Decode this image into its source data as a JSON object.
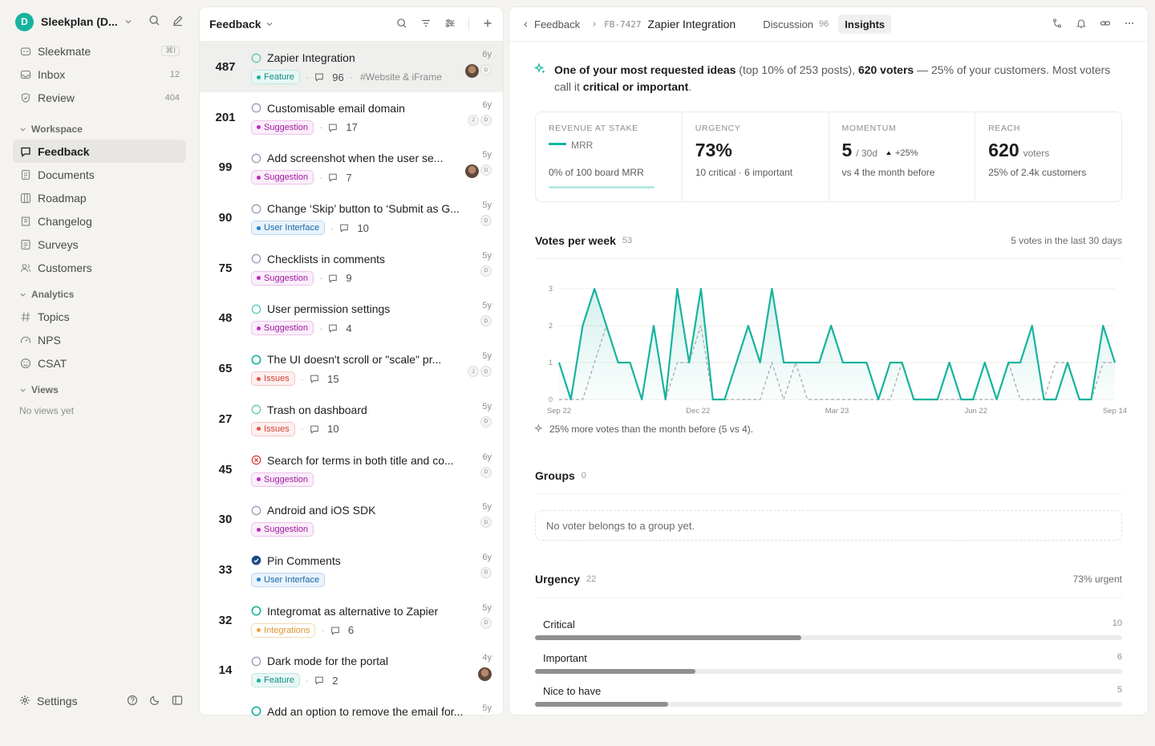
{
  "workspace": {
    "initial": "D",
    "name": "Sleekplan (D..."
  },
  "nav_top": [
    {
      "label": "Sleekmate",
      "shortcut": "⌘I",
      "icon": "sparkle-icon"
    },
    {
      "label": "Inbox",
      "count": "12",
      "icon": "inbox-icon"
    },
    {
      "label": "Review",
      "count": "404",
      "icon": "shield-icon"
    }
  ],
  "sections": {
    "workspace": "Workspace",
    "analytics": "Analytics",
    "views": "Views",
    "no_views": "No views yet"
  },
  "nav_workspace": [
    {
      "label": "Feedback",
      "icon": "chat-icon",
      "active": true
    },
    {
      "label": "Documents",
      "icon": "document-icon"
    },
    {
      "label": "Roadmap",
      "icon": "roadmap-icon"
    },
    {
      "label": "Changelog",
      "icon": "changelog-icon"
    },
    {
      "label": "Surveys",
      "icon": "survey-icon"
    },
    {
      "label": "Customers",
      "icon": "users-icon"
    }
  ],
  "nav_analytics": [
    {
      "label": "Topics",
      "icon": "hash-icon"
    },
    {
      "label": "NPS",
      "icon": "gauge-icon"
    },
    {
      "label": "CSAT",
      "icon": "smiley-icon"
    }
  ],
  "footer": {
    "settings": "Settings"
  },
  "list": {
    "title": "Feedback",
    "items": [
      {
        "votes": "487",
        "title": "Zapier Integration",
        "status": "open",
        "tag": "Feature",
        "tag_type": "feature",
        "comments": "96",
        "hashtag": "#Website & iFrame",
        "age": "6y",
        "avatars": [
          "photo",
          "D"
        ],
        "selected": true
      },
      {
        "votes": "201",
        "title": "Customisable email domain",
        "status": "planned",
        "tag": "Suggestion",
        "tag_type": "suggestion",
        "comments": "17",
        "age": "6y",
        "avatars": [
          "J",
          "D"
        ]
      },
      {
        "votes": "99",
        "title": "Add screenshot when the user se...",
        "status": "planned",
        "tag": "Suggestion",
        "tag_type": "suggestion",
        "comments": "7",
        "age": "5y",
        "avatars": [
          "photo",
          "D"
        ]
      },
      {
        "votes": "90",
        "title": "Change ‘Skip’ button to ‘Submit as G...",
        "status": "planned",
        "tag": "User Interface",
        "tag_type": "ui",
        "comments": "10",
        "age": "5y",
        "avatars": [
          "D"
        ]
      },
      {
        "votes": "75",
        "title": "Checklists in comments",
        "status": "planned",
        "tag": "Suggestion",
        "tag_type": "suggestion",
        "comments": "9",
        "age": "5y",
        "avatars": [
          "D"
        ]
      },
      {
        "votes": "48",
        "title": "User permission settings",
        "status": "open",
        "tag": "Suggestion",
        "tag_type": "suggestion",
        "comments": "4",
        "age": "5y",
        "avatars": [
          "D"
        ]
      },
      {
        "votes": "65",
        "title": "The UI doesn't scroll or \"scale\" pr...",
        "status": "progress",
        "tag": "Issues",
        "tag_type": "issues",
        "comments": "15",
        "age": "5y",
        "avatars": [
          "J",
          "D"
        ]
      },
      {
        "votes": "27",
        "title": "Trash on dashboard",
        "status": "open",
        "tag": "Issues",
        "tag_type": "issues",
        "comments": "10",
        "age": "5y",
        "avatars": [
          "D"
        ]
      },
      {
        "votes": "45",
        "title": "Search for terms in both title and co...",
        "status": "rejected",
        "tag": "Suggestion",
        "tag_type": "suggestion",
        "comments": "",
        "age": "6y",
        "avatars": [
          "D"
        ]
      },
      {
        "votes": "30",
        "title": "Android and iOS SDK",
        "status": "planned",
        "tag": "Suggestion",
        "tag_type": "suggestion",
        "comments": "",
        "age": "5y",
        "avatars": [
          "D"
        ]
      },
      {
        "votes": "33",
        "title": "Pin Comments",
        "status": "done",
        "tag": "User Interface",
        "tag_type": "ui",
        "comments": "",
        "age": "6y",
        "avatars": [
          "D"
        ]
      },
      {
        "votes": "32",
        "title": "Integromat as alternative to Zapier",
        "status": "progress",
        "tag": "Integrations",
        "tag_type": "integrations",
        "comments": "6",
        "age": "5y",
        "avatars": [
          "D"
        ]
      },
      {
        "votes": "14",
        "title": "Dark mode for the portal",
        "status": "planned",
        "tag": "Feature",
        "tag_type": "feature",
        "comments": "2",
        "age": "4y",
        "avatars": [
          "photo"
        ]
      },
      {
        "votes": "",
        "title": "Add an option to remove the email for...",
        "status": "progress",
        "tag": "",
        "tag_type": "",
        "comments": "",
        "age": "5y",
        "avatars": []
      }
    ]
  },
  "detail": {
    "breadcrumb_root": "Feedback",
    "post_id": "FB-7427",
    "title": "Zapier Integration",
    "tabs": [
      {
        "label": "Discussion",
        "count": "96",
        "active": false
      },
      {
        "label": "Insights",
        "count": "",
        "active": true
      }
    ],
    "insight": {
      "lead": "One of your most requested ideas",
      "rank": "(top 10% of 253 posts),",
      "voters": "620 voters",
      "middle": "— 25% of your customers. Most voters call it",
      "emphasis": "critical or important",
      "end": "."
    },
    "stats": {
      "revenue": {
        "label": "REVENUE AT STAKE",
        "value_label": "MRR",
        "sub": "0% of 100 board MRR",
        "fraction": 0
      },
      "urgency": {
        "label": "URGENCY",
        "value": "73%",
        "sub": "10 critical · 6 important"
      },
      "momentum": {
        "label": "MOMENTUM",
        "value": "5",
        "unit": "/ 30d",
        "trend": "+25%",
        "sub": "vs 4 the month before"
      },
      "reach": {
        "label": "REACH",
        "value": "620",
        "unit": "voters",
        "sub": "25% of 2.4k customers"
      }
    },
    "votes_section": {
      "title": "Votes per week",
      "count": "53",
      "right": "5 votes in the last 30 days",
      "note": "25% more votes than the month before (5 vs 4)."
    },
    "groups_section": {
      "title": "Groups",
      "count": "0",
      "empty": "No voter belongs to a group yet."
    },
    "urgency_section": {
      "title": "Urgency",
      "count": "22",
      "right": "73% urgent",
      "rows": [
        {
          "label": "Critical",
          "count": 10,
          "fraction": 0.454
        },
        {
          "label": "Important",
          "count": 6,
          "fraction": 0.273
        },
        {
          "label": "Nice to have",
          "count": 5,
          "fraction": 0.227
        }
      ]
    }
  },
  "colors": {
    "accent": "#17b39e",
    "previous": "#a6a6a6"
  },
  "chart_data": {
    "type": "line",
    "x_tick_labels": [
      "Sep 22",
      "Dec 22",
      "Mar 23",
      "Jun 22",
      "Sep 14"
    ],
    "ylim": [
      0,
      3
    ],
    "y_ticks": [
      0,
      1,
      2,
      3
    ],
    "grid": true,
    "series": [
      {
        "values": [
          1,
          0,
          2,
          3,
          2,
          1,
          1,
          0,
          2,
          0,
          3,
          1,
          3,
          0,
          0,
          1,
          2,
          1,
          3,
          1,
          1,
          1,
          1,
          2,
          1,
          1,
          1,
          0,
          1,
          1,
          0,
          0,
          0,
          1,
          0,
          0,
          1,
          0,
          1,
          1,
          2,
          0,
          0,
          1,
          0,
          0,
          2,
          1
        ]
      },
      {
        "values": [
          0,
          0,
          0,
          1,
          2,
          1,
          1,
          0,
          2,
          0,
          1,
          1,
          2,
          0,
          0,
          0,
          0,
          0,
          1,
          0,
          1,
          0,
          0,
          0,
          0,
          0,
          0,
          0,
          0,
          1,
          0,
          0,
          0,
          0,
          0,
          0,
          0,
          0,
          1,
          0,
          0,
          0,
          1,
          1,
          0,
          0,
          1,
          1
        ]
      }
    ]
  }
}
